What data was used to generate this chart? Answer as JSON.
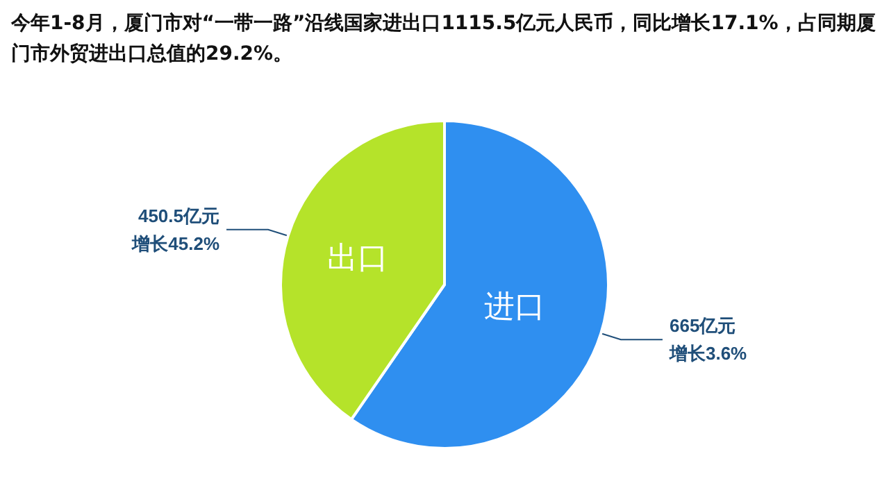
{
  "chart_data": {
    "type": "pie",
    "title": "今年1-8月，厦门市对“一带一路”沿线国家进出口1115.5亿元人民币，同比增长17.1%，占同期厦门市外贸进出口总值的29.2%。",
    "categories": [
      "进口",
      "出口"
    ],
    "values": [
      665,
      450.5
    ],
    "colors": [
      "#2f8ff0",
      "#b5e32a"
    ],
    "value_labels": [
      "665亿元",
      "450.5亿元"
    ],
    "annotations": [
      "增长3.6%",
      "增长45.2%"
    ],
    "legend": false
  }
}
